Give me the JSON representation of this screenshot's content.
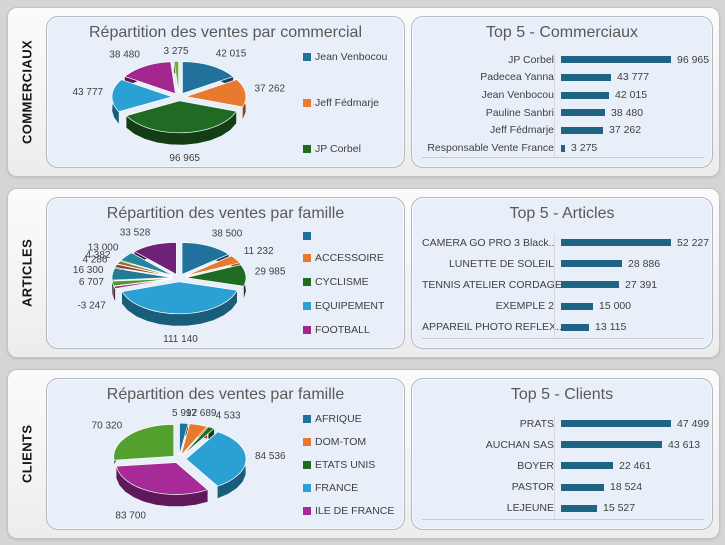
{
  "page_bg": "#d5d5d5",
  "accent_bar_color": "#1f6484",
  "sidebar_labels": [
    "COMMERCIAUX",
    "ARTICLES",
    "CLIENTS"
  ],
  "chart_data": [
    {
      "type": "pie",
      "title": "Répartition des ventes par commercial",
      "labels": [
        "Jean Venbocou",
        "Jeff Fédmarje",
        "JP Corbel",
        "Padecea Yanna",
        "Pauline Sanbri",
        "Responsable Vente France"
      ],
      "values": [
        42015,
        37262,
        96965,
        43777,
        38480,
        3275
      ],
      "display_values": [
        "42 015",
        "37 262",
        "96 965",
        "43 777",
        "38 480",
        "3 275"
      ],
      "colors": [
        "#20719b",
        "#e87a2f",
        "#206b24",
        "#2ba0d4",
        "#a1268d",
        "#6fae3e"
      ],
      "legend_position": "right",
      "legend": [
        {
          "label": "Jean Venbocou",
          "color": "#20719b"
        },
        {
          "label": "Jeff Fédmarje",
          "color": "#e87a2f"
        },
        {
          "label": "JP Corbel",
          "color": "#206b24"
        }
      ]
    },
    {
      "type": "bar",
      "orientation": "horizontal",
      "title": "Top 5 - Commerciaux",
      "categories": [
        "JP Corbel",
        "Padecea Yanna",
        "Jean Venbocou",
        "Pauline Sanbri",
        "Jeff Fédmarje",
        "Responsable Vente France"
      ],
      "values": [
        96965,
        43777,
        42015,
        38480,
        37262,
        3275
      ],
      "display_values": [
        "96 965",
        "43 777",
        "42 015",
        "38 480",
        "37 262",
        "3 275"
      ],
      "bar_color": "#1f6484",
      "xlim": [
        0,
        100000
      ],
      "grid": false
    },
    {
      "type": "pie",
      "title": "Répartition des ventes par famille",
      "labels": [
        "",
        "ACCESSOIRE",
        "CYCLISME",
        "EQUIPEMENT",
        "FOOTBALL",
        "",
        "",
        "",
        "",
        "",
        ""
      ],
      "values": [
        38500,
        11232,
        29985,
        111140,
        -3247,
        6707,
        16300,
        4286,
        4382,
        13000,
        33528
      ],
      "display_values": [
        "38 500",
        "11 232",
        "29 985",
        "111 140",
        "-3 247",
        "6 707",
        "16 300",
        "4 286",
        "4 382",
        "13 000",
        "33 528"
      ],
      "colors": [
        "#20719b",
        "#e87a2f",
        "#206b24",
        "#2ba0d4",
        "#a1268d",
        "#4d9a2e",
        "#1e7d95",
        "#8c3a32",
        "#94711b",
        "#2786a0",
        "#6e2277"
      ],
      "legend_position": "right",
      "legend": [
        {
          "label": "",
          "color": "#20719b"
        },
        {
          "label": "ACCESSOIRE",
          "color": "#e87a2f"
        },
        {
          "label": "CYCLISME",
          "color": "#206b24"
        },
        {
          "label": "EQUIPEMENT",
          "color": "#2ba0d4"
        },
        {
          "label": "FOOTBALL",
          "color": "#a1268d"
        }
      ]
    },
    {
      "type": "bar",
      "orientation": "horizontal",
      "title": "Top 5 - Articles",
      "categories": [
        "CAMERA GO PRO 3 Black..",
        "LUNETTE DE SOLEIL",
        "TENNIS ATELIER CORDAGE",
        "EXEMPLE 2",
        "APPAREIL PHOTO REFLEX.."
      ],
      "values": [
        52227,
        28886,
        27391,
        15000,
        13115
      ],
      "display_values": [
        "52 227",
        "28 886",
        "27 391",
        "15 000",
        "13 115"
      ],
      "bar_color": "#1f6484",
      "xlim": [
        0,
        55000
      ],
      "grid": false
    },
    {
      "type": "pie",
      "title": "Répartition des ventes par famille",
      "labels": [
        "AFRIQUE",
        "DOM-TOM",
        "ETATS UNIS",
        "FRANCE",
        "ILE DE FRANCE",
        ""
      ],
      "values": [
        5997,
        12689,
        4533,
        84536,
        83700,
        70320
      ],
      "display_values": [
        "5 997",
        "12 689",
        "4 533",
        "84 536",
        "83 700",
        "70 320"
      ],
      "colors": [
        "#20719b",
        "#e87a2f",
        "#206b24",
        "#2ba0d4",
        "#a62a98",
        "#53a02e"
      ],
      "legend_position": "right",
      "legend": [
        {
          "label": "AFRIQUE",
          "color": "#20719b"
        },
        {
          "label": "DOM-TOM",
          "color": "#e87a2f"
        },
        {
          "label": "ETATS UNIS",
          "color": "#206b24"
        },
        {
          "label": "FRANCE",
          "color": "#2ba0d4"
        },
        {
          "label": "ILE DE FRANCE",
          "color": "#a62a98"
        }
      ]
    },
    {
      "type": "bar",
      "orientation": "horizontal",
      "title": "Top 5 - Clients",
      "categories": [
        "PRATS",
        "AUCHAN SAS",
        "BOYER",
        "PASTOR",
        "LEJEUNE"
      ],
      "values": [
        47499,
        43613,
        22461,
        18524,
        15527
      ],
      "display_values": [
        "47 499",
        "43 613",
        "22 461",
        "18 524",
        "15 527"
      ],
      "bar_color": "#1f6484",
      "xlim": [
        0,
        50000
      ],
      "grid": false
    }
  ]
}
